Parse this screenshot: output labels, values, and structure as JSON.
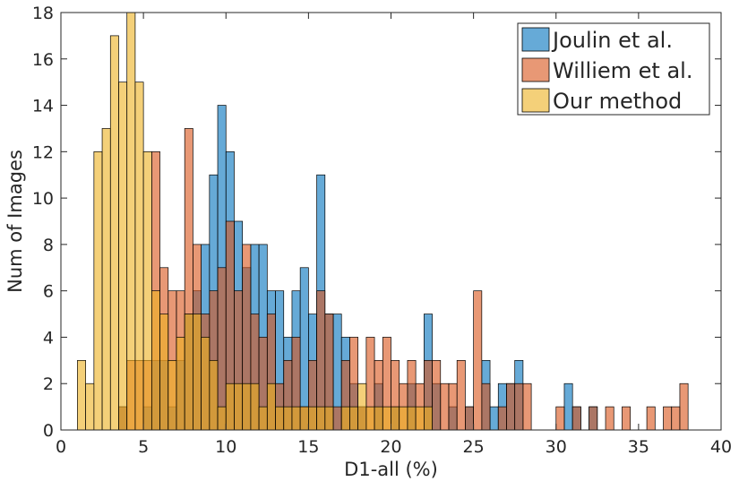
{
  "chart_data": {
    "type": "bar",
    "subtype": "overlapping-histogram",
    "xlabel": "D1-all (%)",
    "ylabel": "Num of Images",
    "xlim": [
      0,
      40
    ],
    "ylim": [
      0,
      18
    ],
    "xticks": [
      0,
      5,
      10,
      15,
      20,
      25,
      30,
      35,
      40
    ],
    "yticks": [
      0,
      2,
      4,
      6,
      8,
      10,
      12,
      14,
      16,
      18
    ],
    "bin_width": 0.5,
    "grid": false,
    "legend_position": "top-right",
    "series": [
      {
        "name": "Joulin et al.",
        "color": "#0072BD",
        "bins": [
          [
            3.5,
            1
          ],
          [
            5.0,
            1
          ],
          [
            5.5,
            3
          ],
          [
            6.0,
            3
          ],
          [
            6.5,
            1
          ],
          [
            7.0,
            3
          ],
          [
            7.5,
            5
          ],
          [
            8.0,
            6
          ],
          [
            8.5,
            8
          ],
          [
            9.0,
            11
          ],
          [
            9.5,
            14
          ],
          [
            10.0,
            12
          ],
          [
            10.5,
            9
          ],
          [
            11.0,
            7
          ],
          [
            11.5,
            8
          ],
          [
            12.0,
            8
          ],
          [
            12.5,
            6
          ],
          [
            13.0,
            6
          ],
          [
            13.5,
            4
          ],
          [
            14.0,
            6
          ],
          [
            14.5,
            7
          ],
          [
            15.0,
            5
          ],
          [
            15.5,
            11
          ],
          [
            16.0,
            5
          ],
          [
            16.5,
            5
          ],
          [
            17.0,
            4
          ],
          [
            17.5,
            2
          ],
          [
            18.0,
            1
          ],
          [
            19.0,
            2
          ],
          [
            20.0,
            1
          ],
          [
            21.0,
            2
          ],
          [
            22.0,
            5
          ],
          [
            22.5,
            2
          ],
          [
            23.5,
            1
          ],
          [
            24.5,
            1
          ],
          [
            25.5,
            3
          ],
          [
            26.0,
            1
          ],
          [
            26.5,
            2
          ],
          [
            27.0,
            2
          ],
          [
            27.5,
            3
          ],
          [
            30.5,
            2
          ],
          [
            31.0,
            1
          ],
          [
            32.0,
            1
          ]
        ]
      },
      {
        "name": "Williem et al.",
        "color": "#D95319",
        "bins": [
          [
            3.5,
            1
          ],
          [
            4.0,
            3
          ],
          [
            4.5,
            3
          ],
          [
            5.0,
            3
          ],
          [
            5.5,
            12
          ],
          [
            6.0,
            7
          ],
          [
            6.5,
            6
          ],
          [
            7.0,
            6
          ],
          [
            7.5,
            13
          ],
          [
            8.0,
            8
          ],
          [
            8.5,
            5
          ],
          [
            9.0,
            6
          ],
          [
            9.5,
            7
          ],
          [
            10.0,
            9
          ],
          [
            10.5,
            6
          ],
          [
            11.0,
            8
          ],
          [
            11.5,
            5
          ],
          [
            12.0,
            4
          ],
          [
            12.5,
            5
          ],
          [
            13.0,
            2
          ],
          [
            13.5,
            3
          ],
          [
            14.0,
            4
          ],
          [
            14.5,
            1
          ],
          [
            15.0,
            3
          ],
          [
            15.5,
            6
          ],
          [
            16.0,
            5
          ],
          [
            16.5,
            1
          ],
          [
            17.0,
            3
          ],
          [
            17.5,
            4
          ],
          [
            18.0,
            1
          ],
          [
            18.5,
            4
          ],
          [
            19.0,
            3
          ],
          [
            19.5,
            4
          ],
          [
            20.0,
            3
          ],
          [
            20.5,
            2
          ],
          [
            21.0,
            3
          ],
          [
            21.5,
            2
          ],
          [
            22.0,
            3
          ],
          [
            22.5,
            3
          ],
          [
            23.0,
            2
          ],
          [
            23.5,
            2
          ],
          [
            24.0,
            3
          ],
          [
            24.5,
            1
          ],
          [
            25.0,
            6
          ],
          [
            25.5,
            2
          ],
          [
            26.5,
            1
          ],
          [
            27.0,
            2
          ],
          [
            27.5,
            2
          ],
          [
            28.0,
            2
          ],
          [
            30.0,
            1
          ],
          [
            31.0,
            1
          ],
          [
            32.0,
            1
          ],
          [
            33.0,
            1
          ],
          [
            34.0,
            1
          ],
          [
            35.5,
            1
          ],
          [
            36.5,
            1
          ],
          [
            37.0,
            1
          ],
          [
            37.5,
            2
          ]
        ]
      },
      {
        "name": "Our method",
        "color": "#EDB120",
        "bins": [
          [
            1.0,
            3
          ],
          [
            1.5,
            2
          ],
          [
            2.0,
            12
          ],
          [
            2.5,
            13
          ],
          [
            3.0,
            17
          ],
          [
            3.5,
            15
          ],
          [
            4.0,
            18
          ],
          [
            4.5,
            15
          ],
          [
            5.0,
            12
          ],
          [
            5.5,
            6
          ],
          [
            6.0,
            5
          ],
          [
            6.5,
            3
          ],
          [
            7.0,
            4
          ],
          [
            7.5,
            5
          ],
          [
            8.0,
            5
          ],
          [
            8.5,
            4
          ],
          [
            9.0,
            3
          ],
          [
            9.5,
            1
          ],
          [
            10.0,
            2
          ],
          [
            10.5,
            2
          ],
          [
            11.0,
            2
          ],
          [
            11.5,
            2
          ],
          [
            12.0,
            1
          ],
          [
            12.5,
            2
          ],
          [
            13.0,
            1
          ],
          [
            13.5,
            1
          ],
          [
            14.0,
            1
          ],
          [
            14.5,
            1
          ],
          [
            15.0,
            1
          ],
          [
            15.5,
            1
          ],
          [
            16.0,
            1
          ],
          [
            17.0,
            1
          ],
          [
            17.5,
            1
          ],
          [
            18.0,
            2
          ],
          [
            18.5,
            1
          ],
          [
            19.0,
            1
          ],
          [
            19.5,
            1
          ],
          [
            20.0,
            1
          ],
          [
            20.5,
            1
          ],
          [
            21.0,
            1
          ],
          [
            21.5,
            1
          ],
          [
            22.0,
            1
          ]
        ]
      }
    ]
  }
}
